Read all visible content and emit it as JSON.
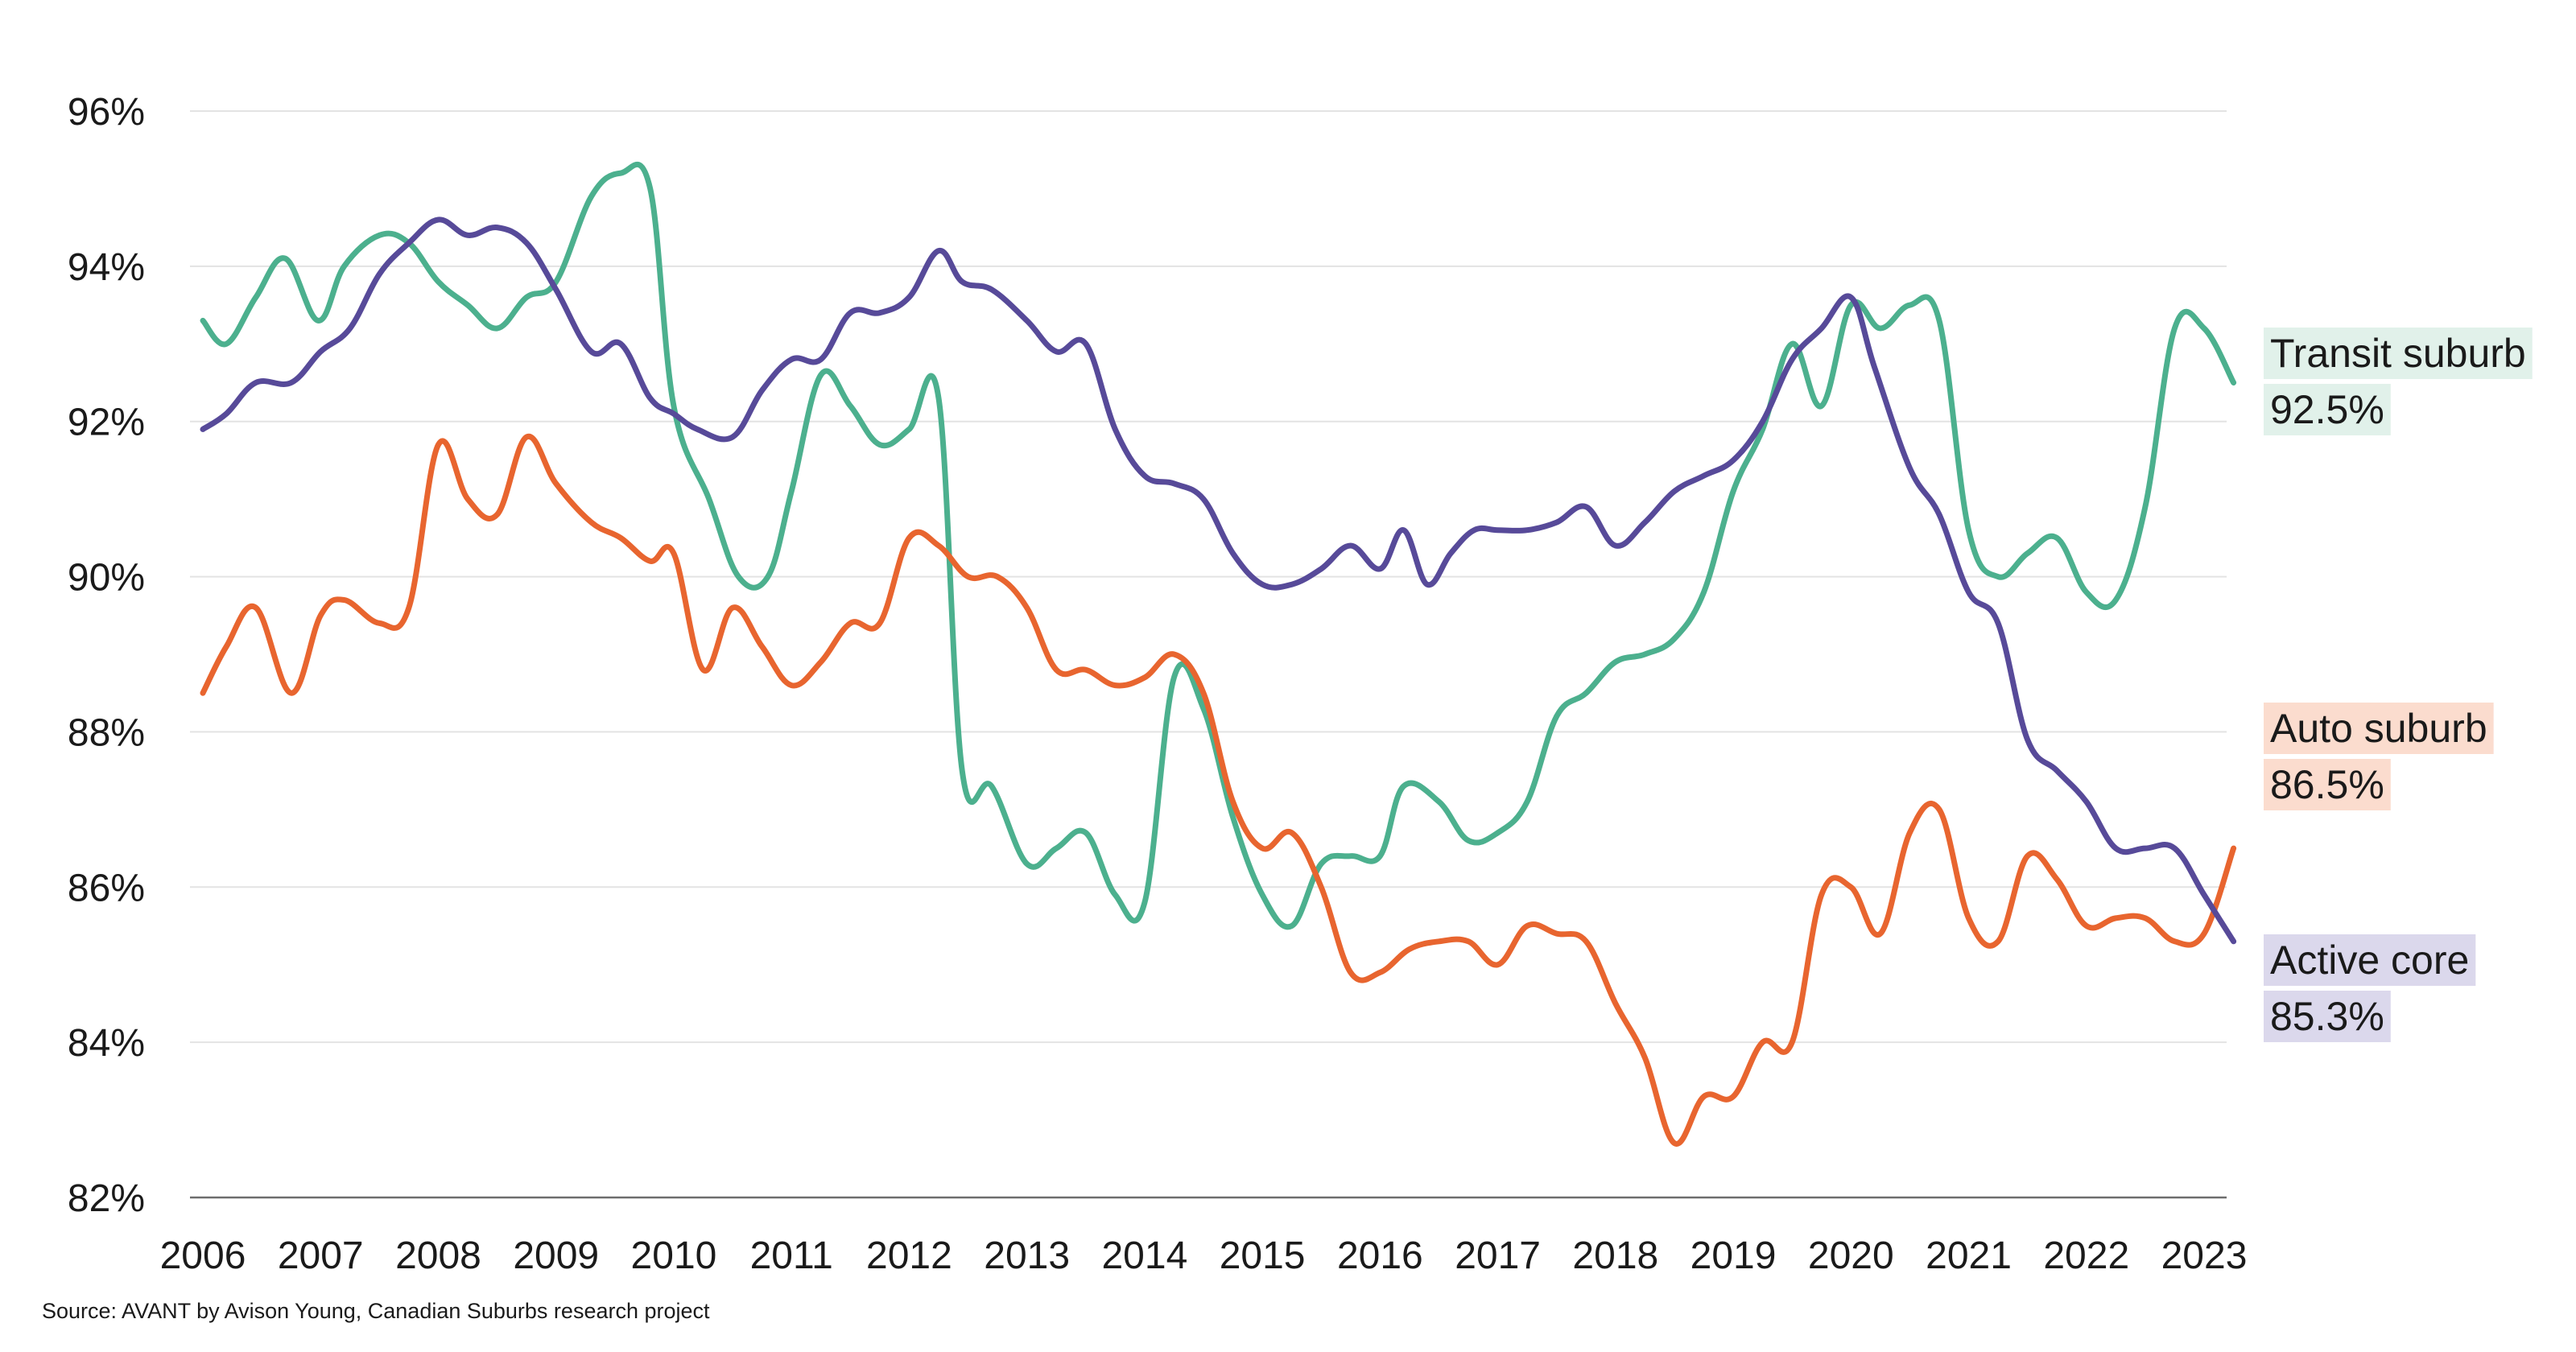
{
  "source_note": "Source: AVANT by Avison Young, Canadian Suburbs research project",
  "chart_data": {
    "type": "line",
    "title": "",
    "xlabel": "",
    "ylabel": "",
    "xlim": [
      2006,
      2023.3
    ],
    "ylim": [
      82,
      96
    ],
    "y_ticks": [
      82,
      84,
      86,
      88,
      90,
      92,
      94,
      96
    ],
    "y_tick_labels": [
      "82%",
      "84%",
      "86%",
      "88%",
      "90%",
      "92%",
      "94%",
      "96%"
    ],
    "x_ticks": [
      2006,
      2007,
      2008,
      2009,
      2010,
      2011,
      2012,
      2013,
      2014,
      2015,
      2016,
      2017,
      2018,
      2019,
      2020,
      2021,
      2022,
      2023
    ],
    "x_tick_labels": [
      "2006",
      "2007",
      "2008",
      "2009",
      "2010",
      "2011",
      "2012",
      "2013",
      "2014",
      "2015",
      "2016",
      "2017",
      "2018",
      "2019",
      "2020",
      "2021",
      "2022",
      "2023"
    ],
    "grid": true,
    "series": [
      {
        "name": "Transit suburb",
        "color": "#4cb08e",
        "label_bg": "#e1f1ea",
        "end_name": "Transit suburb",
        "end_value": "92.5%",
        "x": [
          2006,
          2006.2,
          2006.45,
          2006.7,
          2006.98,
          2007.2,
          2007.5,
          2007.75,
          2008,
          2008.25,
          2008.5,
          2008.75,
          2009,
          2009.3,
          2009.55,
          2009.8,
          2010,
          2010.3,
          2010.55,
          2010.8,
          2011,
          2011.25,
          2011.5,
          2011.75,
          2012,
          2012.25,
          2012.45,
          2012.7,
          2013,
          2013.25,
          2013.5,
          2013.75,
          2014,
          2014.25,
          2014.5,
          2014.75,
          2015,
          2015.25,
          2015.5,
          2015.75,
          2016,
          2016.2,
          2016.5,
          2016.75,
          2017,
          2017.25,
          2017.5,
          2017.75,
          2018,
          2018.25,
          2018.5,
          2018.75,
          2019,
          2019.25,
          2019.5,
          2019.75,
          2020,
          2020.25,
          2020.5,
          2020.75,
          2021,
          2021.25,
          2021.5,
          2021.75,
          2022,
          2022.25,
          2022.5,
          2022.75,
          2023,
          2023.25
        ],
        "values": [
          93.3,
          93.0,
          93.6,
          94.1,
          93.3,
          94.0,
          94.4,
          94.3,
          93.8,
          93.5,
          93.2,
          93.6,
          93.8,
          94.9,
          95.2,
          95.0,
          92.2,
          91.0,
          90.0,
          90.0,
          91.1,
          92.6,
          92.2,
          91.7,
          91.9,
          92.3,
          87.5,
          87.3,
          86.3,
          86.5,
          86.7,
          85.9,
          85.8,
          88.7,
          88.3,
          86.9,
          85.9,
          85.5,
          86.3,
          86.4,
          86.4,
          87.3,
          87.1,
          86.6,
          86.7,
          87.1,
          88.2,
          88.5,
          88.9,
          89.0,
          89.2,
          89.8,
          91.1,
          91.9,
          93.0,
          92.2,
          93.5,
          93.2,
          93.5,
          93.3,
          90.6,
          90.0,
          90.3,
          90.5,
          89.8,
          89.7,
          90.9,
          93.2,
          93.2,
          92.5
        ]
      },
      {
        "name": "Auto suburb",
        "color": "#e8652f",
        "label_bg": "#fbdcce",
        "end_name": "Auto suburb",
        "end_value": "86.5%",
        "x": [
          2006,
          2006.2,
          2006.45,
          2006.75,
          2007,
          2007.2,
          2007.5,
          2007.75,
          2008,
          2008.25,
          2008.5,
          2008.75,
          2009,
          2009.3,
          2009.55,
          2009.8,
          2010,
          2010.25,
          2010.5,
          2010.75,
          2011,
          2011.25,
          2011.5,
          2011.75,
          2012,
          2012.25,
          2012.5,
          2012.75,
          2013,
          2013.25,
          2013.5,
          2013.75,
          2014,
          2014.25,
          2014.5,
          2014.75,
          2015,
          2015.25,
          2015.5,
          2015.75,
          2016,
          2016.25,
          2016.5,
          2016.75,
          2017,
          2017.25,
          2017.5,
          2017.75,
          2018,
          2018.25,
          2018.5,
          2018.75,
          2019,
          2019.25,
          2019.5,
          2019.75,
          2020,
          2020.25,
          2020.5,
          2020.75,
          2021,
          2021.25,
          2021.5,
          2021.75,
          2022,
          2022.25,
          2022.5,
          2022.75,
          2023,
          2023.25
        ],
        "values": [
          88.5,
          89.1,
          89.6,
          88.5,
          89.5,
          89.7,
          89.4,
          89.6,
          91.7,
          91.0,
          90.8,
          91.8,
          91.2,
          90.7,
          90.5,
          90.2,
          90.3,
          88.8,
          89.6,
          89.1,
          88.6,
          88.9,
          89.4,
          89.4,
          90.5,
          90.4,
          90.0,
          90.0,
          89.6,
          88.8,
          88.8,
          88.6,
          88.7,
          89.0,
          88.5,
          87.1,
          86.5,
          86.7,
          86.0,
          84.9,
          84.9,
          85.2,
          85.3,
          85.3,
          85.0,
          85.5,
          85.4,
          85.3,
          84.5,
          83.8,
          82.7,
          83.3,
          83.3,
          84.0,
          84.0,
          85.9,
          86.0,
          85.4,
          86.7,
          87.0,
          85.6,
          85.3,
          86.4,
          86.1,
          85.5,
          85.6,
          85.6,
          85.3,
          85.4,
          86.5
        ]
      },
      {
        "name": "Active core",
        "color": "#574a99",
        "label_bg": "#dbd8ec",
        "end_name": "Active core",
        "end_value": "85.3%",
        "x": [
          2006,
          2006.2,
          2006.45,
          2006.75,
          2007,
          2007.25,
          2007.5,
          2007.75,
          2008,
          2008.25,
          2008.5,
          2008.75,
          2009,
          2009.3,
          2009.55,
          2009.8,
          2010,
          2010.2,
          2010.5,
          2010.75,
          2011,
          2011.25,
          2011.5,
          2011.75,
          2012,
          2012.25,
          2012.45,
          2012.7,
          2013,
          2013.25,
          2013.5,
          2013.75,
          2014,
          2014.25,
          2014.5,
          2014.75,
          2015,
          2015.25,
          2015.5,
          2015.75,
          2016,
          2016.2,
          2016.4,
          2016.6,
          2016.8,
          2017,
          2017.25,
          2017.5,
          2017.75,
          2018,
          2018.25,
          2018.5,
          2018.75,
          2019,
          2019.25,
          2019.5,
          2019.75,
          2020,
          2020.2,
          2020.5,
          2020.75,
          2021,
          2021.25,
          2021.5,
          2021.75,
          2022,
          2022.25,
          2022.5,
          2022.75,
          2023,
          2023.25
        ],
        "values": [
          91.9,
          92.1,
          92.5,
          92.5,
          92.9,
          93.2,
          93.9,
          94.3,
          94.6,
          94.4,
          94.5,
          94.3,
          93.7,
          92.9,
          93.0,
          92.3,
          92.1,
          91.9,
          91.8,
          92.4,
          92.8,
          92.8,
          93.4,
          93.4,
          93.6,
          94.2,
          93.8,
          93.7,
          93.3,
          92.9,
          93.0,
          91.9,
          91.3,
          91.2,
          91.0,
          90.3,
          89.9,
          89.9,
          90.1,
          90.4,
          90.1,
          90.6,
          89.9,
          90.3,
          90.6,
          90.6,
          90.6,
          90.7,
          90.9,
          90.4,
          90.7,
          91.1,
          91.3,
          91.5,
          92.0,
          92.8,
          93.2,
          93.6,
          92.7,
          91.4,
          90.8,
          89.8,
          89.4,
          87.9,
          87.5,
          87.1,
          86.5,
          86.5,
          86.5,
          85.9,
          85.3
        ]
      }
    ]
  }
}
